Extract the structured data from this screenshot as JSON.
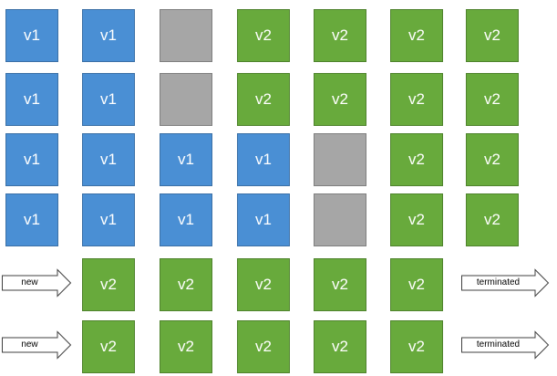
{
  "grid": {
    "rows": [
      [
        "v1",
        "v1",
        "",
        "v2",
        "v2",
        "v2",
        "v2"
      ],
      [
        "v1",
        "v1",
        "",
        "v2",
        "v2",
        "v2",
        "v2"
      ],
      [
        "v1",
        "v1",
        "v1",
        "v1",
        "",
        "v2",
        "v2"
      ],
      [
        "v1",
        "v1",
        "v1",
        "v1",
        "",
        "v2",
        "v2"
      ],
      [
        null,
        "v2",
        "v2",
        "v2",
        "v2",
        "v2",
        null
      ],
      [
        null,
        "v2",
        "v2",
        "v2",
        "v2",
        "v2",
        null
      ]
    ]
  },
  "arrows": [
    {
      "label": "new",
      "row": 4,
      "side": "left"
    },
    {
      "label": "terminated",
      "row": 4,
      "side": "right"
    },
    {
      "label": "new",
      "row": 5,
      "side": "left"
    },
    {
      "label": "terminated",
      "row": 5,
      "side": "right"
    }
  ],
  "colors": {
    "v1": "#4a8fd4",
    "v2": "#68aa3c",
    "empty": "#a6a6a6"
  }
}
